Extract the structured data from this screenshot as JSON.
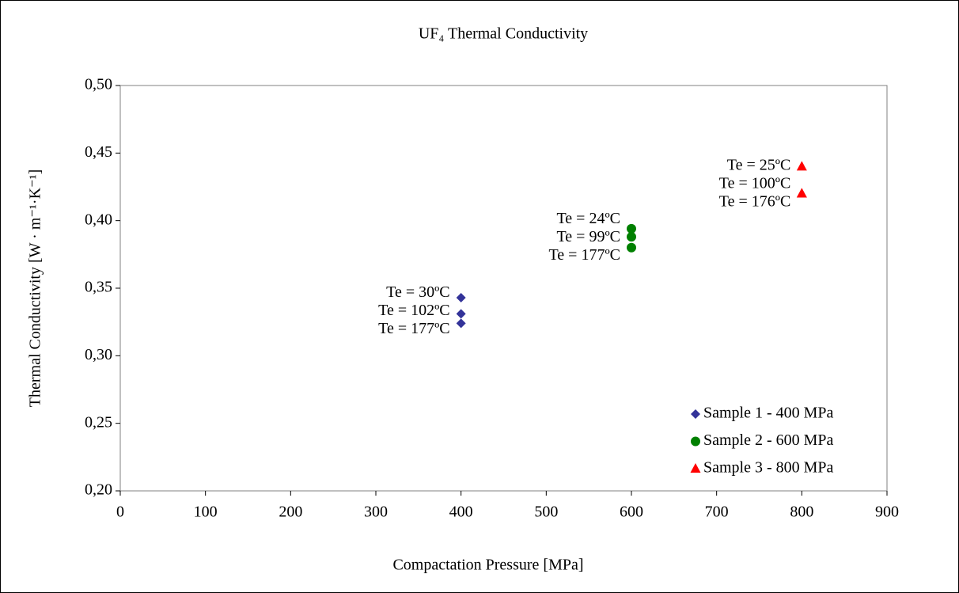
{
  "chart_data": {
    "type": "scatter",
    "title": "UF₄ Thermal Conductivity",
    "x_label": "Compactation Pressure [MPa]",
    "y_label": "Thermal Conductivity [W · m⁻¹·K⁻¹]",
    "series": [
      {
        "name": "Sample 1 - 400 MPa",
        "color": "#333399",
        "marker": "diamond",
        "x": [
          400,
          400,
          400
        ],
        "values": [
          0.343,
          0.331,
          0.324
        ],
        "labels": [
          "Te = 30ºC",
          "Te = 102ºC",
          "Te = 177ºC"
        ]
      },
      {
        "name": "Sample 2 - 600 MPa",
        "color": "#008000",
        "marker": "circle",
        "x": [
          600,
          600,
          600
        ],
        "values": [
          0.394,
          0.388,
          0.38
        ],
        "labels": [
          "Te = 24ºC",
          "Te = 99ºC",
          "Te = 177ºC"
        ]
      },
      {
        "name": "Sample 3 - 800 MPa",
        "color": "#ff0000",
        "marker": "triangle",
        "x": [
          800,
          800,
          800
        ],
        "values": [
          0.44,
          0.42,
          0.42
        ],
        "labels": [
          "Te = 25ºC",
          "Te = 100ºC",
          "Te = 176ºC"
        ]
      }
    ],
    "xlim": [
      0,
      900
    ],
    "xticks": [
      0,
      100,
      200,
      300,
      400,
      500,
      600,
      700,
      800,
      900
    ],
    "ylim": [
      0.2,
      0.5
    ],
    "yticks": [
      {
        "value": 0.2,
        "label": "0,20"
      },
      {
        "value": 0.25,
        "label": "0,25"
      },
      {
        "value": 0.3,
        "label": "0,30"
      },
      {
        "value": 0.35,
        "label": "0,35"
      },
      {
        "value": 0.4,
        "label": "0,40"
      },
      {
        "value": 0.45,
        "label": "0,45"
      },
      {
        "value": 0.5,
        "label": "0,50"
      }
    ],
    "grid": false,
    "legend": "lower right"
  }
}
